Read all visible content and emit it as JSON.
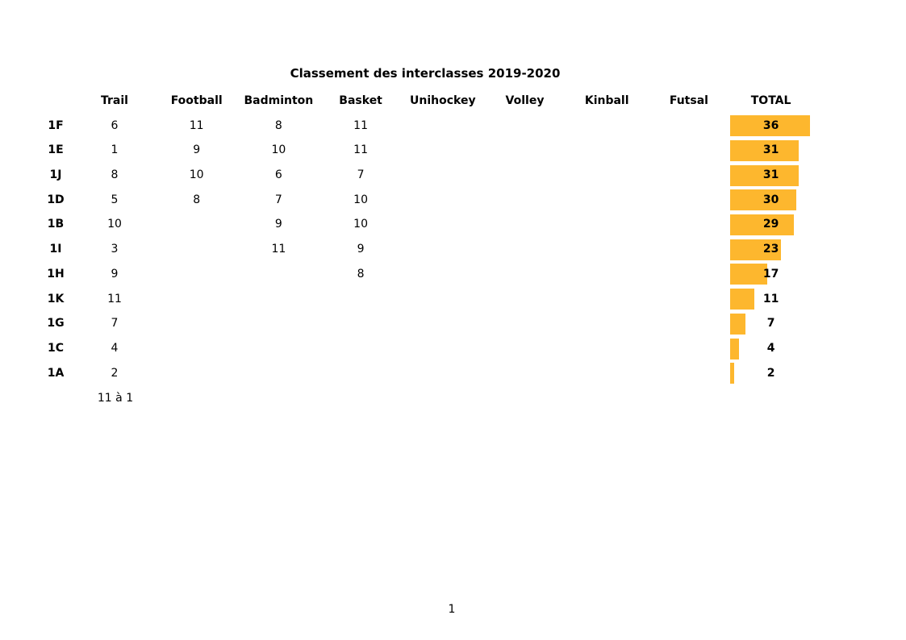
{
  "title": "Classement des interclasses 2019-2020",
  "page_number": "1",
  "footer_note": "11 à 1",
  "bar_color": "#FDB72E",
  "chart_data": {
    "type": "bar",
    "orientation": "horizontal",
    "title": "Classement des interclasses 2019-2020",
    "legend": "none",
    "grid": false,
    "columns": [
      "Trail",
      "Football",
      "Badminton",
      "Basket",
      "Unihockey",
      "Volley",
      "Kinball",
      "Futsal",
      "TOTAL"
    ],
    "rows": [
      {
        "label": "1F",
        "values": [
          "6",
          "11",
          "8",
          "11",
          "",
          "",
          "",
          ""
        ],
        "total": 36
      },
      {
        "label": "1E",
        "values": [
          "1",
          "9",
          "10",
          "11",
          "",
          "",
          "",
          ""
        ],
        "total": 31
      },
      {
        "label": "1J",
        "values": [
          "8",
          "10",
          "6",
          "7",
          "",
          "",
          "",
          ""
        ],
        "total": 31
      },
      {
        "label": "1D",
        "values": [
          "5",
          "8",
          "7",
          "10",
          "",
          "",
          "",
          ""
        ],
        "total": 30
      },
      {
        "label": "1B",
        "values": [
          "10",
          "",
          "9",
          "10",
          "",
          "",
          "",
          ""
        ],
        "total": 29
      },
      {
        "label": "1I",
        "values": [
          "3",
          "",
          "11",
          "9",
          "",
          "",
          "",
          ""
        ],
        "total": 23
      },
      {
        "label": "1H",
        "values": [
          "9",
          "",
          "",
          "8",
          "",
          "",
          "",
          ""
        ],
        "total": 17
      },
      {
        "label": "1K",
        "values": [
          "11",
          "",
          "",
          "",
          "",
          "",
          "",
          ""
        ],
        "total": 11
      },
      {
        "label": "1G",
        "values": [
          "7",
          "",
          "",
          "",
          "",
          "",
          "",
          ""
        ],
        "total": 7
      },
      {
        "label": "1C",
        "values": [
          "4",
          "",
          "",
          "",
          "",
          "",
          "",
          ""
        ],
        "total": 4
      },
      {
        "label": "1A",
        "values": [
          "2",
          "",
          "",
          "",
          "",
          "",
          "",
          ""
        ],
        "total": 2
      }
    ],
    "footer_note": "11 à 1",
    "bar_color": "#FDB72E",
    "xlim": [
      0,
      36
    ]
  }
}
